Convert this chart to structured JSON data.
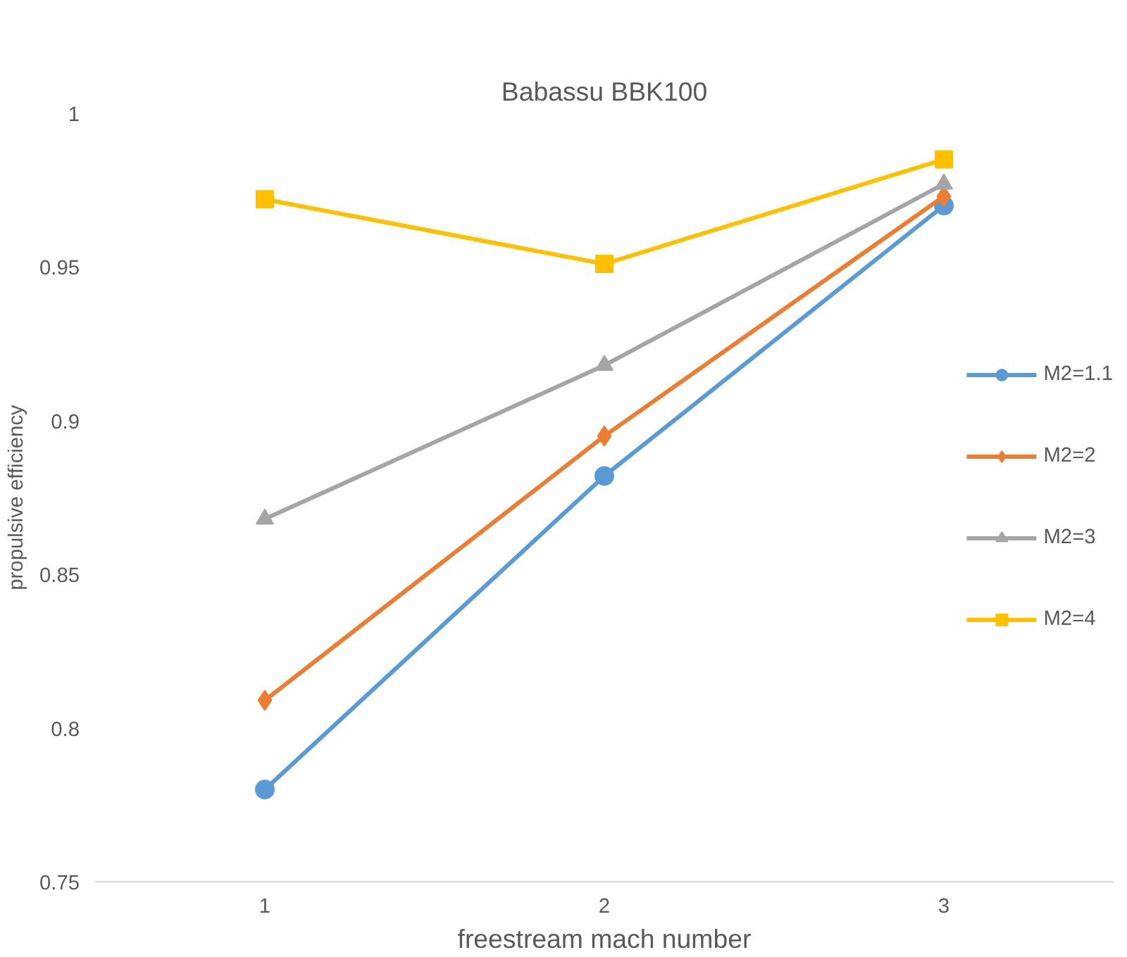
{
  "chart_data": {
    "type": "line",
    "title": "Babassu BBK100",
    "xlabel": "freestream mach number",
    "ylabel": "propulsive efficiency",
    "categories": [
      "1",
      "2",
      "3"
    ],
    "series": [
      {
        "name": "M2=1.1",
        "color": "#5b9bd5",
        "marker": "circle",
        "values": [
          0.78,
          0.882,
          0.97
        ]
      },
      {
        "name": "M2=2",
        "color": "#ed7d31",
        "marker": "diamond",
        "values": [
          0.809,
          0.895,
          0.973
        ]
      },
      {
        "name": "M2=3",
        "color": "#a5a5a5",
        "marker": "triangle",
        "values": [
          0.868,
          0.918,
          0.977
        ]
      },
      {
        "name": "M2=4",
        "color": "#ffc000",
        "marker": "square",
        "values": [
          0.972,
          0.951,
          0.985
        ]
      }
    ],
    "ylim": [
      0.75,
      1
    ],
    "yticks": [
      0.75,
      0.8,
      0.85,
      0.9,
      0.95,
      1
    ],
    "grid": false,
    "legend": "right",
    "line_style": "solid"
  }
}
